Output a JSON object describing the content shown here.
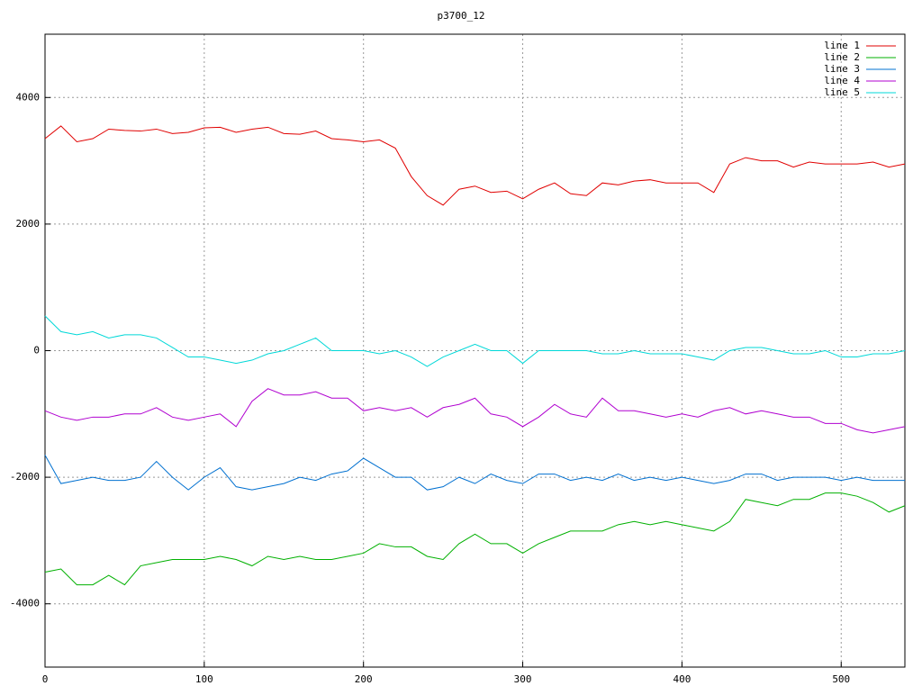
{
  "chart_data": {
    "type": "line",
    "title": "p3700_12",
    "x": [
      0,
      10,
      20,
      30,
      40,
      50,
      60,
      70,
      80,
      90,
      100,
      110,
      120,
      130,
      140,
      150,
      160,
      170,
      180,
      190,
      200,
      210,
      220,
      230,
      240,
      250,
      260,
      270,
      280,
      290,
      300,
      310,
      320,
      330,
      340,
      350,
      360,
      370,
      380,
      390,
      400,
      410,
      420,
      430,
      440,
      450,
      460,
      470,
      480,
      490,
      500,
      510,
      520,
      530,
      540
    ],
    "series": [
      {
        "name": "line 1",
        "color": "#e00000",
        "values": [
          3350,
          3550,
          3300,
          3350,
          3500,
          3480,
          3470,
          3500,
          3430,
          3450,
          3520,
          3530,
          3450,
          3500,
          3530,
          3430,
          3420,
          3470,
          3350,
          3330,
          3300,
          3330,
          3200,
          2750,
          2450,
          2300,
          2550,
          2600,
          2500,
          2520,
          2400,
          2550,
          2650,
          2480,
          2450,
          2650,
          2620,
          2680,
          2700,
          2650,
          2650,
          2650,
          2500,
          2950,
          3050,
          3000,
          3000,
          2900,
          2980,
          2950,
          2950,
          2950,
          2980,
          2900,
          2950
        ]
      },
      {
        "name": "line 2",
        "color": "#00b000",
        "values": [
          -3500,
          -3450,
          -3700,
          -3700,
          -3550,
          -3700,
          -3400,
          -3350,
          -3300,
          -3300,
          -3300,
          -3250,
          -3300,
          -3400,
          -3250,
          -3300,
          -3250,
          -3300,
          -3300,
          -3250,
          -3200,
          -3050,
          -3100,
          -3100,
          -3250,
          -3300,
          -3050,
          -2900,
          -3050,
          -3050,
          -3200,
          -3050,
          -2950,
          -2850,
          -2850,
          -2850,
          -2750,
          -2700,
          -2750,
          -2700,
          -2750,
          -2800,
          -2850,
          -2700,
          -2350,
          -2400,
          -2450,
          -2350,
          -2350,
          -2250,
          -2250,
          -2300,
          -2400,
          -2550,
          -2450
        ]
      },
      {
        "name": "line 3",
        "color": "#0070d0",
        "values": [
          -1650,
          -2100,
          -2050,
          -2000,
          -2050,
          -2050,
          -2000,
          -1750,
          -2000,
          -2200,
          -2000,
          -1850,
          -2150,
          -2200,
          -2150,
          -2100,
          -2000,
          -2050,
          -1950,
          -1900,
          -1700,
          -1850,
          -2000,
          -2000,
          -2200,
          -2150,
          -2000,
          -2100,
          -1950,
          -2050,
          -2100,
          -1950,
          -1950,
          -2050,
          -2000,
          -2050,
          -1950,
          -2050,
          -2000,
          -2050,
          -2000,
          -2050,
          -2100,
          -2050,
          -1950,
          -1950,
          -2050,
          -2000,
          -2000,
          -2000,
          -2050,
          -2000,
          -2050,
          -2050,
          -2050
        ]
      },
      {
        "name": "line 4",
        "color": "#b000d0",
        "values": [
          -950,
          -1050,
          -1100,
          -1050,
          -1050,
          -1000,
          -1000,
          -900,
          -1050,
          -1100,
          -1050,
          -1000,
          -1200,
          -800,
          -600,
          -700,
          -700,
          -650,
          -750,
          -750,
          -950,
          -900,
          -950,
          -900,
          -1050,
          -900,
          -850,
          -750,
          -1000,
          -1050,
          -1200,
          -1050,
          -850,
          -1000,
          -1050,
          -750,
          -950,
          -950,
          -1000,
          -1050,
          -1000,
          -1050,
          -950,
          -900,
          -1000,
          -950,
          -1000,
          -1050,
          -1050,
          -1150,
          -1150,
          -1250,
          -1300,
          -1250,
          -1200
        ]
      },
      {
        "name": "line 5",
        "color": "#00d8d8",
        "values": [
          550,
          300,
          250,
          300,
          200,
          250,
          250,
          200,
          50,
          -100,
          -100,
          -150,
          -200,
          -150,
          -50,
          0,
          100,
          200,
          0,
          0,
          0,
          -50,
          0,
          -100,
          -250,
          -100,
          0,
          100,
          0,
          0,
          -200,
          0,
          0,
          0,
          0,
          -50,
          -50,
          0,
          -50,
          -50,
          -50,
          -100,
          -150,
          0,
          50,
          50,
          0,
          -50,
          -50,
          0,
          -100,
          -100,
          -50,
          -50,
          0
        ]
      }
    ],
    "xlim": [
      0,
      540
    ],
    "xticks": [
      0,
      100,
      200,
      300,
      400,
      500
    ],
    "ylim": [
      -5000,
      5000
    ],
    "yticks": [
      -4000,
      -2000,
      0,
      2000,
      4000
    ],
    "grid": true,
    "legend": "top-right"
  }
}
